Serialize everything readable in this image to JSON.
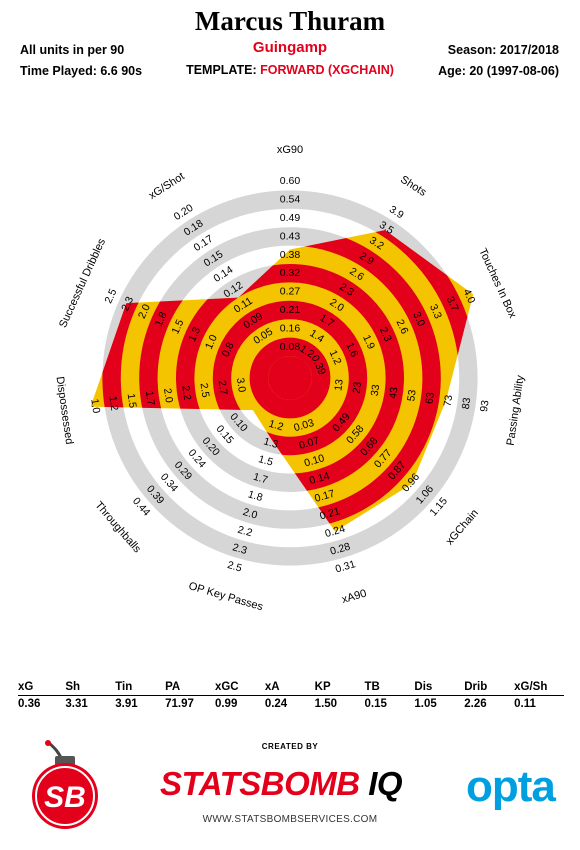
{
  "header": {
    "player_name": "Marcus Thuram",
    "team": "Guingamp",
    "template_prefix": "TEMPLATE: ",
    "template_value": "FORWARD (XGCHAIN)",
    "units": "All units in per 90",
    "time_played": "Time Played: 6.6 90s",
    "season": "Season: 2017/2018",
    "age": "Age: 20 (1997-08-06)"
  },
  "colors": {
    "red": "#e3001b",
    "yellow": "#f5c400",
    "ring_grey": "#d6d6d6",
    "opta_blue": "#00a0e0"
  },
  "chart_data": {
    "type": "radar",
    "axes": [
      {
        "name": "xG90",
        "ticks": [
          "0.03",
          "0.08",
          "0.16",
          "0.21",
          "0.27",
          "0.32",
          "0.38",
          "0.43",
          "0.49",
          "0.54",
          "0.60"
        ],
        "value": 0.36
      },
      {
        "name": "Shots",
        "ticks": [
          "0.3",
          "0.7",
          "1.2",
          "1.4",
          "1.7",
          "2.0",
          "2.3",
          "2.6",
          "2.9",
          "3.2",
          "3.5",
          "3.9"
        ],
        "value": 3.31
      },
      {
        "name": "Touches In Box",
        "ticks": [
          "0.39",
          "1.2",
          "1.6",
          "1.9",
          "2.3",
          "2.6",
          "3.0",
          "3.3",
          "3.7",
          "4.0"
        ],
        "value": 3.91
      },
      {
        "name": "Passing Ability",
        "ticks": [
          "13",
          "23",
          "33",
          "43",
          "53",
          "63",
          "73",
          "83",
          "93"
        ],
        "value": 71.97
      },
      {
        "name": "xGChain",
        "ticks": [
          "0.49",
          "0.58",
          "0.68",
          "0.77",
          "0.87",
          "0.96",
          "1.06",
          "1.15"
        ],
        "value": 0.99
      },
      {
        "name": "xA90",
        "ticks": [
          "0.03",
          "0.07",
          "0.10",
          "0.14",
          "0.17",
          "0.21",
          "0.24",
          "0.28",
          "0.31"
        ],
        "value": 0.24
      },
      {
        "name": "OP Key Passes",
        "ticks": [
          "1.2",
          "1.3",
          "1.5",
          "1.7",
          "1.8",
          "2.0",
          "2.2",
          "2.3",
          "2.5"
        ],
        "value": 1.5
      },
      {
        "name": "Throughballs",
        "ticks": [
          "0.10",
          "0.15",
          "0.20",
          "0.24",
          "0.29",
          "0.34",
          "0.39",
          "0.44"
        ],
        "value": 0.15
      },
      {
        "name": "Dispossessed",
        "ticks": [
          "3.0",
          "2.7",
          "2.5",
          "2.2",
          "2.0",
          "1.7",
          "1.5",
          "1.2",
          "1.0"
        ],
        "value": 1.05
      },
      {
        "name": "Successful Dribbles",
        "ticks": [
          "0.8",
          "1.0",
          "1.3",
          "1.5",
          "1.8",
          "2.0",
          "2.3",
          "2.5"
        ],
        "value": 2.26
      },
      {
        "name": "xG/Shot",
        "ticks": [
          "0.05",
          "0.09",
          "0.11",
          "0.12",
          "0.14",
          "0.15",
          "0.17",
          "0.18",
          "0.20"
        ],
        "value": 0.11
      }
    ],
    "table": {
      "headers": [
        "xG",
        "Sh",
        "Tin",
        "PA",
        "xGC",
        "xA",
        "KP",
        "TB",
        "Dis",
        "Drib",
        "xG/Sh"
      ],
      "values": [
        "0.36",
        "3.31",
        "3.91",
        "71.97",
        "0.99",
        "0.24",
        "1.50",
        "0.15",
        "1.05",
        "2.26",
        "0.11"
      ]
    }
  },
  "footer": {
    "created_by": "CREATED BY",
    "statsbomb_text": "STATSBOMB",
    "statsbomb_iq": " IQ",
    "opta": "opta",
    "badge_text": "SB",
    "website": "WWW.STATSBOMBSERVICES.COM"
  }
}
